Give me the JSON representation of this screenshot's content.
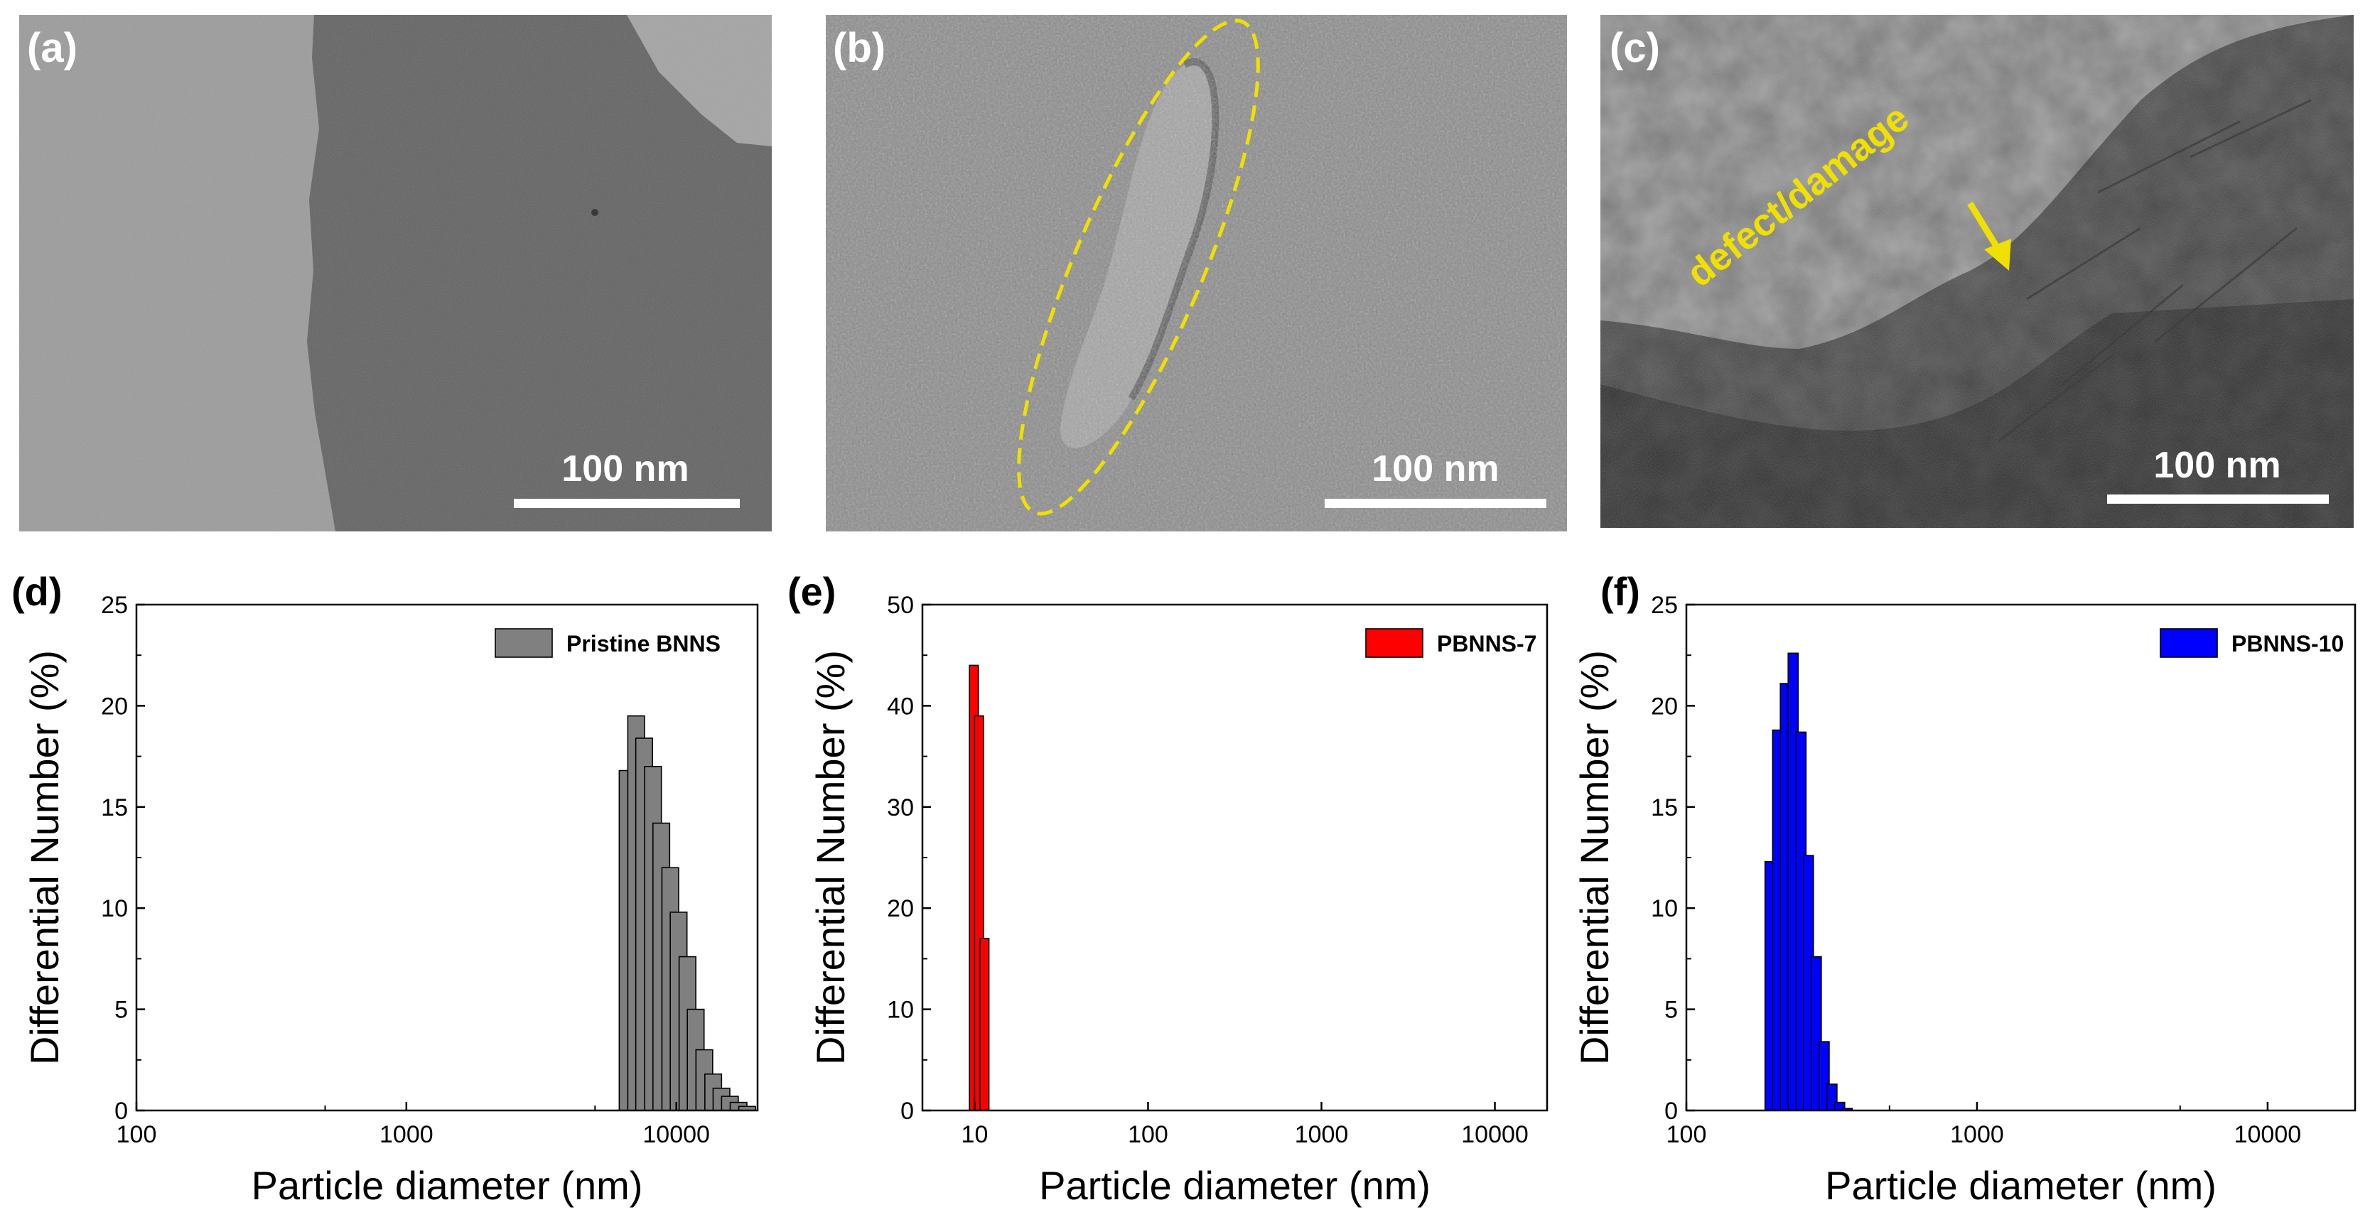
{
  "micrographs": [
    {
      "label": "(a)",
      "scale_bar": "100 nm"
    },
    {
      "label": "(b)",
      "scale_bar": "100 nm"
    },
    {
      "label": "(c)",
      "scale_bar": "100 nm",
      "annotation": "defect/damage"
    }
  ],
  "colors": {
    "grey": "#808080",
    "red": "#ff0000",
    "blue": "#0000ff",
    "yellow": "#f0e000"
  },
  "chart_data": [
    {
      "type": "bar",
      "panel": "(d)",
      "xscale": "log",
      "xlabel": "Particle diameter (nm)",
      "ylabel": "Differential Number (%)",
      "xlim": [
        100,
        20000
      ],
      "ylim": [
        0,
        25
      ],
      "xticks": [
        100,
        1000,
        10000
      ],
      "xticklabels": [
        "100",
        "1000",
        "10000"
      ],
      "yticks": [
        0,
        5,
        10,
        15,
        20,
        25
      ],
      "legend": "Pristine BNNS",
      "color": "#808080",
      "x": [
        6600,
        7100,
        7600,
        8200,
        8800,
        9500,
        10200,
        11000,
        11800,
        12700,
        13700,
        14700,
        15800,
        17000,
        18300
      ],
      "values": [
        16.8,
        19.5,
        18.4,
        17.0,
        14.2,
        12.0,
        9.8,
        7.6,
        5.0,
        3.0,
        1.8,
        1.1,
        0.7,
        0.4,
        0.2
      ]
    },
    {
      "type": "bar",
      "panel": "(e)",
      "xscale": "log",
      "xlabel": "Particle diameter (nm)",
      "ylabel": "Differential Number (%)",
      "xlim": [
        5,
        20000
      ],
      "ylim": [
        0,
        50
      ],
      "xticks": [
        10,
        100,
        1000,
        10000
      ],
      "xticklabels": [
        "10",
        "100",
        "1000",
        "10000"
      ],
      "yticks": [
        0,
        10,
        20,
        30,
        40,
        50
      ],
      "legend": "PBNNS-7",
      "color": "#ff0000",
      "x": [
        9.9,
        10.6,
        11.4
      ],
      "values": [
        44.0,
        39.0,
        17.0
      ]
    },
    {
      "type": "bar",
      "panel": "(f)",
      "xscale": "log",
      "xlabel": "Particle diameter (nm)",
      "ylabel": "Differential Number (%)",
      "xlim": [
        100,
        20000
      ],
      "ylim": [
        0,
        25
      ],
      "xticks": [
        100,
        1000,
        10000
      ],
      "xticklabels": [
        "100",
        "1000",
        "10000"
      ],
      "yticks": [
        0,
        5,
        10,
        15,
        20,
        25
      ],
      "legend": "PBNNS-10",
      "color": "#0000ff",
      "x": [
        194,
        206,
        219,
        233,
        248,
        263,
        280,
        298,
        317,
        337,
        358
      ],
      "values": [
        12.3,
        18.8,
        21.1,
        22.6,
        18.7,
        12.6,
        7.6,
        3.4,
        1.3,
        0.4,
        0.1
      ]
    }
  ]
}
